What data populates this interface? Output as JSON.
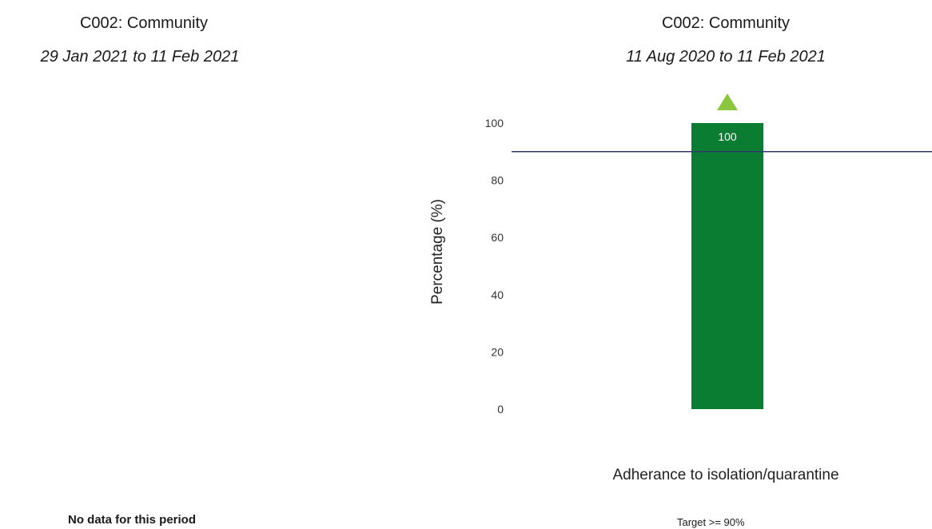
{
  "left_panel": {
    "title": "C002: Community",
    "subtitle": "29 Jan 2021 to 11 Feb 2021",
    "empty_message": "No data for this period"
  },
  "right_panel": {
    "title": "C002: Community",
    "subtitle": "11 Aug 2020 to 11 Feb 2021",
    "target_text": "Target >= 90%"
  },
  "chart_data": {
    "type": "bar",
    "categories": [
      "Adherance to isolation/quarantine"
    ],
    "values": [
      100
    ],
    "data_labels": [
      "100"
    ],
    "ylabel": "Percentage (%)",
    "xlabel": "Adherance to isolation/quarantine",
    "ylim": [
      0,
      100
    ],
    "yticks": [
      0,
      20,
      40,
      60,
      80,
      100
    ],
    "target_line": 90,
    "grid": false,
    "colors": {
      "bar": "#0a7d32",
      "target_line": "#2e3a6b",
      "indicator": "#8cc63f"
    },
    "indicator": "up-triangle"
  }
}
